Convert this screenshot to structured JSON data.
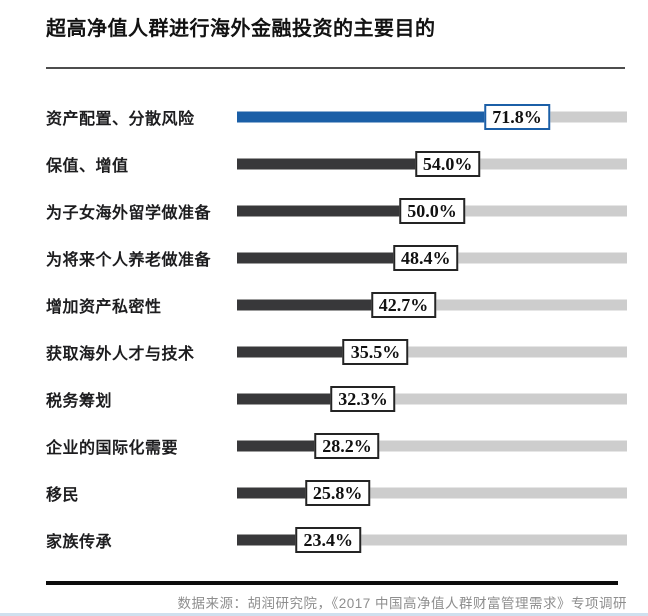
{
  "header": {
    "title": "超高净值人群进行海外金融投资的主要目的"
  },
  "footer": {
    "source": "数据来源：胡润研究院，《2017 中国高净值人群财富管理需求》专项调研"
  },
  "colors": {
    "highlight_bar": "#1b5fa7",
    "default_bar": "#38383a",
    "track": "#cdcdcd",
    "box_border_default": "#242424",
    "box_border_highlight": "#1b5fa7",
    "box_background": "#ffffff"
  },
  "chart_data": {
    "type": "bar",
    "orientation": "horizontal",
    "title": "超高净值人群进行海外金融投资的主要目的",
    "categories": [
      "资产配置、分散风险",
      "保值、增值",
      "为子女海外留学做准备",
      "为将来个人养老做准备",
      "增加资产私密性",
      "获取海外人才与技术",
      "税务筹划",
      "企业的国际化需要",
      "移民",
      "家族传承"
    ],
    "values": [
      71.8,
      54.0,
      50.0,
      48.4,
      42.7,
      35.5,
      32.3,
      28.2,
      25.8,
      23.4
    ],
    "value_labels": [
      "71.8%",
      "54.0%",
      "50.0%",
      "48.4%",
      "42.7%",
      "35.5%",
      "32.3%",
      "28.2%",
      "25.8%",
      "23.4%"
    ],
    "highlight_index": 0,
    "xlim": [
      0,
      100
    ],
    "grid": false,
    "legend": "none",
    "value_label_style": "boxed-at-bar-end"
  }
}
